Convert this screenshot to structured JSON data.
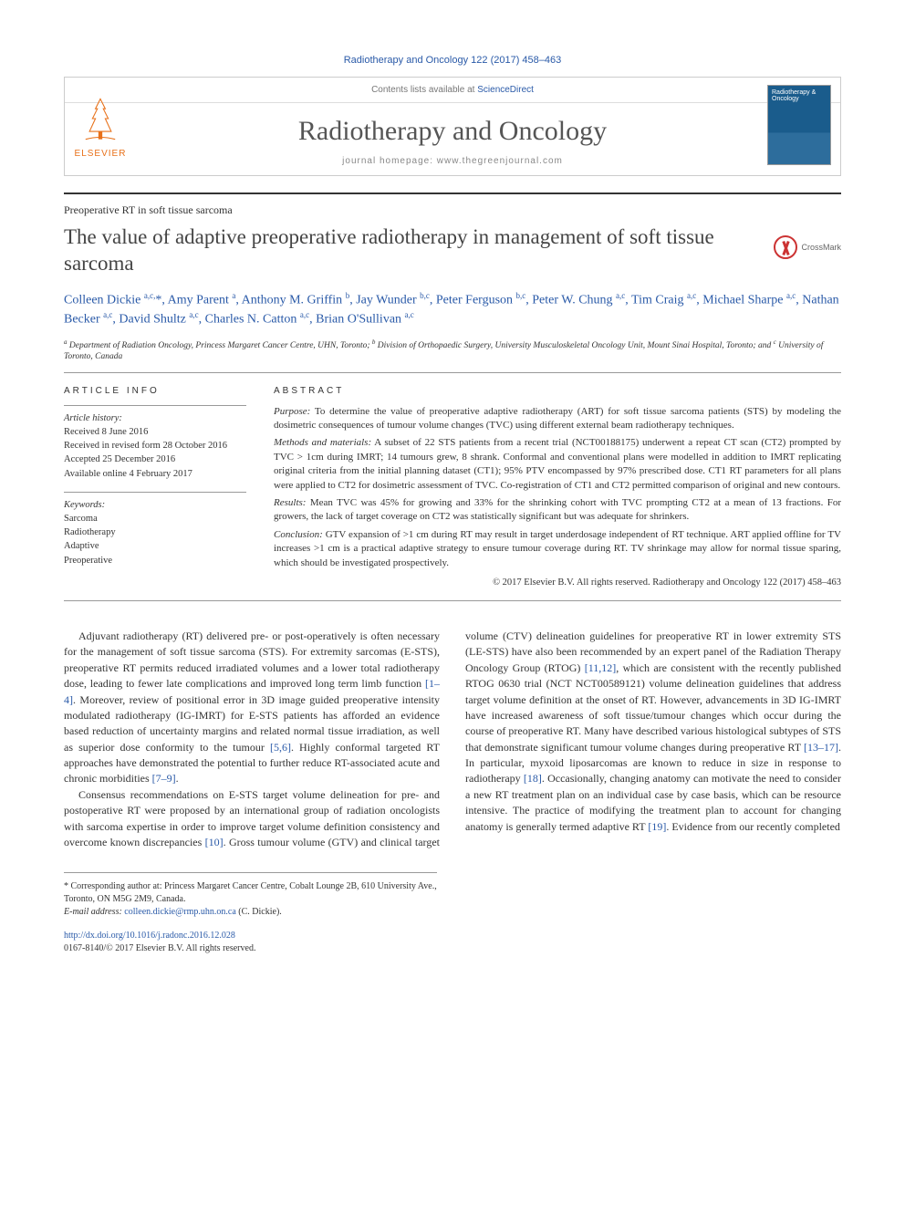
{
  "citation": "Radiotherapy and Oncology 122 (2017) 458–463",
  "header": {
    "contents_text": "Contents lists available at ",
    "contents_link": "ScienceDirect",
    "journal_name": "Radiotherapy and Oncology",
    "homepage_label": "journal homepage: www.thegreenjournal.com",
    "publisher": "ELSEVIER",
    "cover_title": "Radiotherapy & Oncology"
  },
  "section_label": "Preoperative RT in soft tissue sarcoma",
  "article_title": "The value of adaptive preoperative radiotherapy in management of soft tissue sarcoma",
  "crossmark_label": "CrossMark",
  "authors_html": "Colleen Dickie <sup>a,c,</sup>*, Amy Parent <sup>a</sup>, Anthony M. Griffin <sup>b</sup>, Jay Wunder <sup>b,c</sup>, Peter Ferguson <sup>b,c</sup>, Peter W. Chung <sup>a,c</sup>, Tim Craig <sup>a,c</sup>, Michael Sharpe <sup>a,c</sup>, Nathan Becker <sup>a,c</sup>, David Shultz <sup>a,c</sup>, Charles N. Catton <sup>a,c</sup>, Brian O'Sullivan <sup>a,c</sup>",
  "affiliations_html": "<sup>a</sup> Department of Radiation Oncology, Princess Margaret Cancer Centre, UHN, Toronto; <sup>b</sup> Division of Orthopaedic Surgery, University Musculoskeletal Oncology Unit, Mount Sinai Hospital, Toronto; and <sup>c</sup> University of Toronto, Canada",
  "info": {
    "heading": "article info",
    "history_label": "Article history:",
    "history_lines": [
      "Received 8 June 2016",
      "Received in revised form 28 October 2016",
      "Accepted 25 December 2016",
      "Available online 4 February 2017"
    ],
    "keywords_label": "Keywords:",
    "keywords": [
      "Sarcoma",
      "Radiotherapy",
      "Adaptive",
      "Preoperative"
    ]
  },
  "abstract": {
    "heading": "abstract",
    "paragraphs": [
      {
        "lead": "Purpose:",
        "text": " To determine the value of preoperative adaptive radiotherapy (ART) for soft tissue sarcoma patients (STS) by modeling the dosimetric consequences of tumour volume changes (TVC) using different external beam radiotherapy techniques."
      },
      {
        "lead": "Methods and materials:",
        "text": " A subset of 22 STS patients from a recent trial (NCT00188175) underwent a repeat CT scan (CT2) prompted by TVC > 1cm during IMRT; 14 tumours grew, 8 shrank. Conformal and conventional plans were modelled in addition to IMRT replicating original criteria from the initial planning dataset (CT1); 95% PTV encompassed by 97% prescribed dose. CT1 RT parameters for all plans were applied to CT2 for dosimetric assessment of TVC. Co-registration of CT1 and CT2 permitted comparison of original and new contours."
      },
      {
        "lead": "Results:",
        "text": " Mean TVC was 45% for growing and 33% for the shrinking cohort with TVC prompting CT2 at a mean of 13 fractions. For growers, the lack of target coverage on CT2 was statistically significant but was adequate for shrinkers."
      },
      {
        "lead": "Conclusion:",
        "text": " GTV expansion of >1 cm during RT may result in target underdosage independent of RT technique. ART applied offline for TV increases >1 cm is a practical adaptive strategy to ensure tumour coverage during RT. TV shrinkage may allow for normal tissue sparing, which should be investigated prospectively."
      }
    ],
    "copyright": "© 2017 Elsevier B.V. All rights reserved. Radiotherapy and Oncology 122 (2017) 458–463"
  },
  "body": {
    "p1": "Adjuvant radiotherapy (RT) delivered pre- or post-operatively is often necessary for the management of soft tissue sarcoma (STS). For extremity sarcomas (E-STS), preoperative RT permits reduced irradiated volumes and a lower total radiotherapy dose, leading to fewer late complications and improved long term limb function ",
    "r1": "[1–4]",
    "p1b": ". Moreover, review of positional error in 3D image guided preoperative intensity modulated radiotherapy (IG-IMRT) for E-STS patients has afforded an evidence based reduction of uncertainty margins and related normal tissue irradiation, as well as superior dose conformity to the tumour ",
    "r2": "[5,6]",
    "p1c": ". Highly conformal targeted RT approaches have demonstrated the potential to further reduce RT-associated acute and chronic morbidities ",
    "r3": "[7–9]",
    "p1d": ".",
    "p2": "Consensus recommendations on E-STS target volume delineation for pre- and postoperative RT were proposed by an international group of radiation oncologists with sarcoma expertise in order to improve target volume definition consistency and overcome known discrepancies ",
    "r4": "[10]",
    "p2b": ". Gross tumour volume (GTV) and clinical target volume (CTV) delineation guidelines for preoperative RT in lower extremity STS (LE-STS) have also been recommended by an expert panel of the Radiation Therapy Oncology Group (RTOG) ",
    "r5": "[11,12]",
    "p2c": ", which are consistent with the recently published RTOG 0630 trial (NCT NCT00589121) volume delineation guidelines that address target volume definition at the onset of RT. However, advancements in 3D IG-IMRT have increased awareness of soft tissue/tumour changes which occur during the course of preoperative RT. Many have described various histological subtypes of STS that demonstrate significant tumour volume changes during preoperative RT ",
    "r6": "[13–17]",
    "p2d": ". In particular, myxoid liposarcomas are known to reduce in size in response to radiotherapy ",
    "r7": "[18]",
    "p2e": ". Occasionally, changing anatomy can motivate the need to consider a new RT treatment plan on an individual case by case basis, which can be resource intensive. The practice of modifying the treatment plan to account for changing anatomy is generally termed adaptive RT ",
    "r8": "[19]",
    "p2f": ". Evidence from our recently completed"
  },
  "footnote": {
    "corr": "* Corresponding author at: Princess Margaret Cancer Centre, Cobalt Lounge 2B, 610 University Ave., Toronto, ON M5G 2M9, Canada.",
    "email_label": "E-mail address: ",
    "email": "colleen.dickie@rmp.uhn.on.ca",
    "email_suffix": " (C. Dickie)."
  },
  "doi": {
    "link": "http://dx.doi.org/10.1016/j.radonc.2016.12.028",
    "issn": "0167-8140/© 2017 Elsevier B.V. All rights reserved."
  }
}
